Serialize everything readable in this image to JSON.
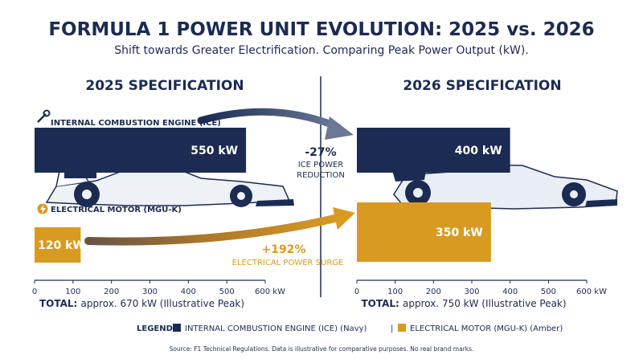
{
  "title": "FORMULA 1 POWER UNIT EVOLUTION: 2025 vs. 2026",
  "subtitle": "Shift towards Greater Electrification. Comparing Peak Power Output (kW).",
  "colors": {
    "navy": "#1c2b52",
    "amber": "#d99a22",
    "text": "#1c2b52",
    "grey_car": "#dfe3ea"
  },
  "chart_data": [
    {
      "type": "bar",
      "title": "2025 SPECIFICATION",
      "orientation": "horizontal",
      "series": [
        {
          "name": "INTERNAL COMBUSTION ENGINE (ICE)",
          "value": 550,
          "label": "550 kW",
          "color": "#1c2b52"
        },
        {
          "name": "ELECTRICAL MOTOR (MGU-K)",
          "value": 120,
          "label": "120 kW",
          "color": "#d99a22"
        }
      ],
      "xlim": [
        0,
        600
      ],
      "ticks": [
        "0",
        "100",
        "200",
        "300",
        "400",
        "500",
        "600 kW"
      ],
      "total": {
        "prefix": "TOTAL:",
        "text": "approx. 670 kW (Illustrative Peak)"
      }
    },
    {
      "type": "bar",
      "title": "2026 SPECIFICATION",
      "orientation": "horizontal",
      "series": [
        {
          "name": "INTERNAL COMBUSTION ENGINE (ICE)",
          "value": 400,
          "label": "400 kW",
          "color": "#1c2b52"
        },
        {
          "name": "ELECTRICAL MOTOR (MGU-K)",
          "value": 350,
          "label": "350 kW",
          "color": "#d99a22"
        }
      ],
      "xlim": [
        0,
        600
      ],
      "ticks": [
        "0",
        "100",
        "200",
        "300",
        "400",
        "500",
        "600 kW"
      ],
      "total": {
        "prefix": "TOTAL:",
        "text": "approx. 750 kW (Illustrative Peak)"
      }
    }
  ],
  "annotations": {
    "ice_change": {
      "value": "-27%",
      "line1": "ICE POWER",
      "line2": "REDUCTION"
    },
    "elec_change": {
      "value": "+192%",
      "line1": "ELECTRICAL POWER SURGE"
    }
  },
  "legend": {
    "label": "LEGEND:",
    "ice": "INTERNAL COMBUSTION ENGINE (ICE) (Navy)",
    "separator": "|",
    "elec": "ELECTRICAL MOTOR (MGU-K) (Amber)"
  },
  "source": "Source: F1 Technical Regulations. Data is illustrative for comparative purposes. No real brand marks."
}
